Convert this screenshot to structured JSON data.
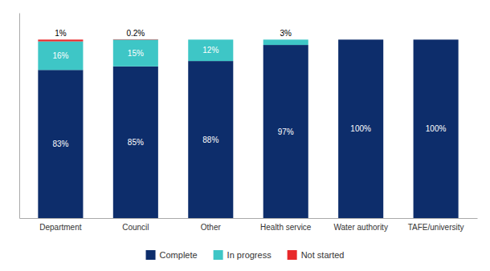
{
  "chart_data": {
    "type": "bar",
    "stacked": true,
    "categories": [
      "Department",
      "Council",
      "Other",
      "Health service",
      "Water authority",
      "TAFE/university"
    ],
    "series": [
      {
        "name": "Complete",
        "color": "#0d2d6b",
        "values": [
          83,
          85,
          88,
          97,
          100,
          100
        ],
        "value_labels": [
          "83%",
          "85%",
          "88%",
          "97%",
          "100%",
          "100%"
        ]
      },
      {
        "name": "In progress",
        "color": "#3ec6c6",
        "values": [
          16,
          15,
          12,
          3,
          0,
          0
        ],
        "value_labels": [
          "16%",
          "15%",
          "12%",
          "3%",
          null,
          null
        ]
      },
      {
        "name": "Not started",
        "color": "#e8282a",
        "values": [
          1,
          0.2,
          0,
          0,
          0,
          0
        ],
        "value_labels": [
          "1%",
          "0.2%",
          null,
          null,
          null,
          null
        ]
      }
    ],
    "ylim": [
      0,
      115
    ],
    "data_labels": true,
    "tick_labels": "x",
    "grid": false,
    "legend": "bottom"
  }
}
